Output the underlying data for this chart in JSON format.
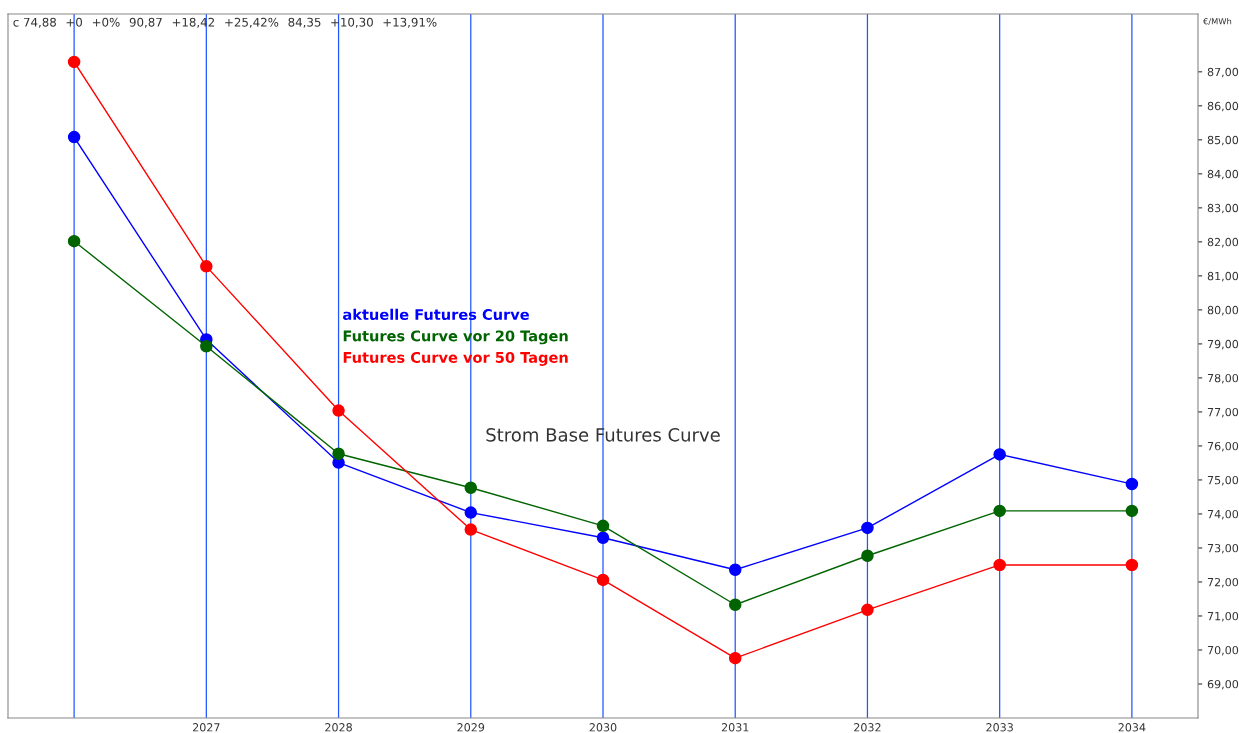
{
  "chart_data": {
    "type": "line",
    "title": "Strom Base Futures Curve",
    "ylabel": "€/MWh",
    "annotations": [
      "c 74,88",
      "+0",
      "+0%",
      "90,87",
      "+18,42",
      "+25,42%",
      "84,35",
      "+10,30",
      "+13,91%"
    ],
    "categories": [
      null,
      "2027",
      "2028",
      "2029",
      "2030",
      "2031",
      "2032",
      "2033",
      "2034"
    ],
    "series": [
      {
        "name": "aktuelle Futures Curve",
        "color": "#0000ff",
        "values": [
          85.08,
          79.13,
          75.51,
          74.04,
          73.3,
          72.36,
          73.59,
          75.75,
          74.88
        ]
      },
      {
        "name": "Futures Curve vor 20 Tagen",
        "color": "#006400",
        "values": [
          82.02,
          78.93,
          75.77,
          74.77,
          73.65,
          71.33,
          72.77,
          74.09,
          74.09
        ]
      },
      {
        "name": "Futures Curve vor 50 Tagen",
        "color": "#ff0000",
        "values": [
          87.29,
          81.28,
          77.04,
          73.54,
          72.06,
          69.76,
          71.18,
          72.5,
          72.5
        ]
      }
    ],
    "ylim": [
      68,
      88.7
    ],
    "yticks": [
      {
        "value": 69,
        "label": "69,00"
      },
      {
        "value": 70,
        "label": "70,00"
      },
      {
        "value": 71,
        "label": "71,00"
      },
      {
        "value": 72,
        "label": "72,00"
      },
      {
        "value": 73,
        "label": "73,00"
      },
      {
        "value": 74,
        "label": "74,00"
      },
      {
        "value": 75,
        "label": "75,00"
      },
      {
        "value": 76,
        "label": "76,00"
      },
      {
        "value": 77,
        "label": "77,00"
      },
      {
        "value": 78,
        "label": "78,00"
      },
      {
        "value": 79,
        "label": "79,00"
      },
      {
        "value": 80,
        "label": "80,00"
      },
      {
        "value": 81,
        "label": "81,00"
      },
      {
        "value": 82,
        "label": "82,00"
      },
      {
        "value": 83,
        "label": "83,00"
      },
      {
        "value": 84,
        "label": "84,00"
      },
      {
        "value": 85,
        "label": "85,00"
      },
      {
        "value": 86,
        "label": "86,00"
      },
      {
        "value": 87,
        "label": "87,00"
      }
    ],
    "grid": "x",
    "legend": "center left",
    "marker": "circle",
    "line_style": "solid"
  }
}
